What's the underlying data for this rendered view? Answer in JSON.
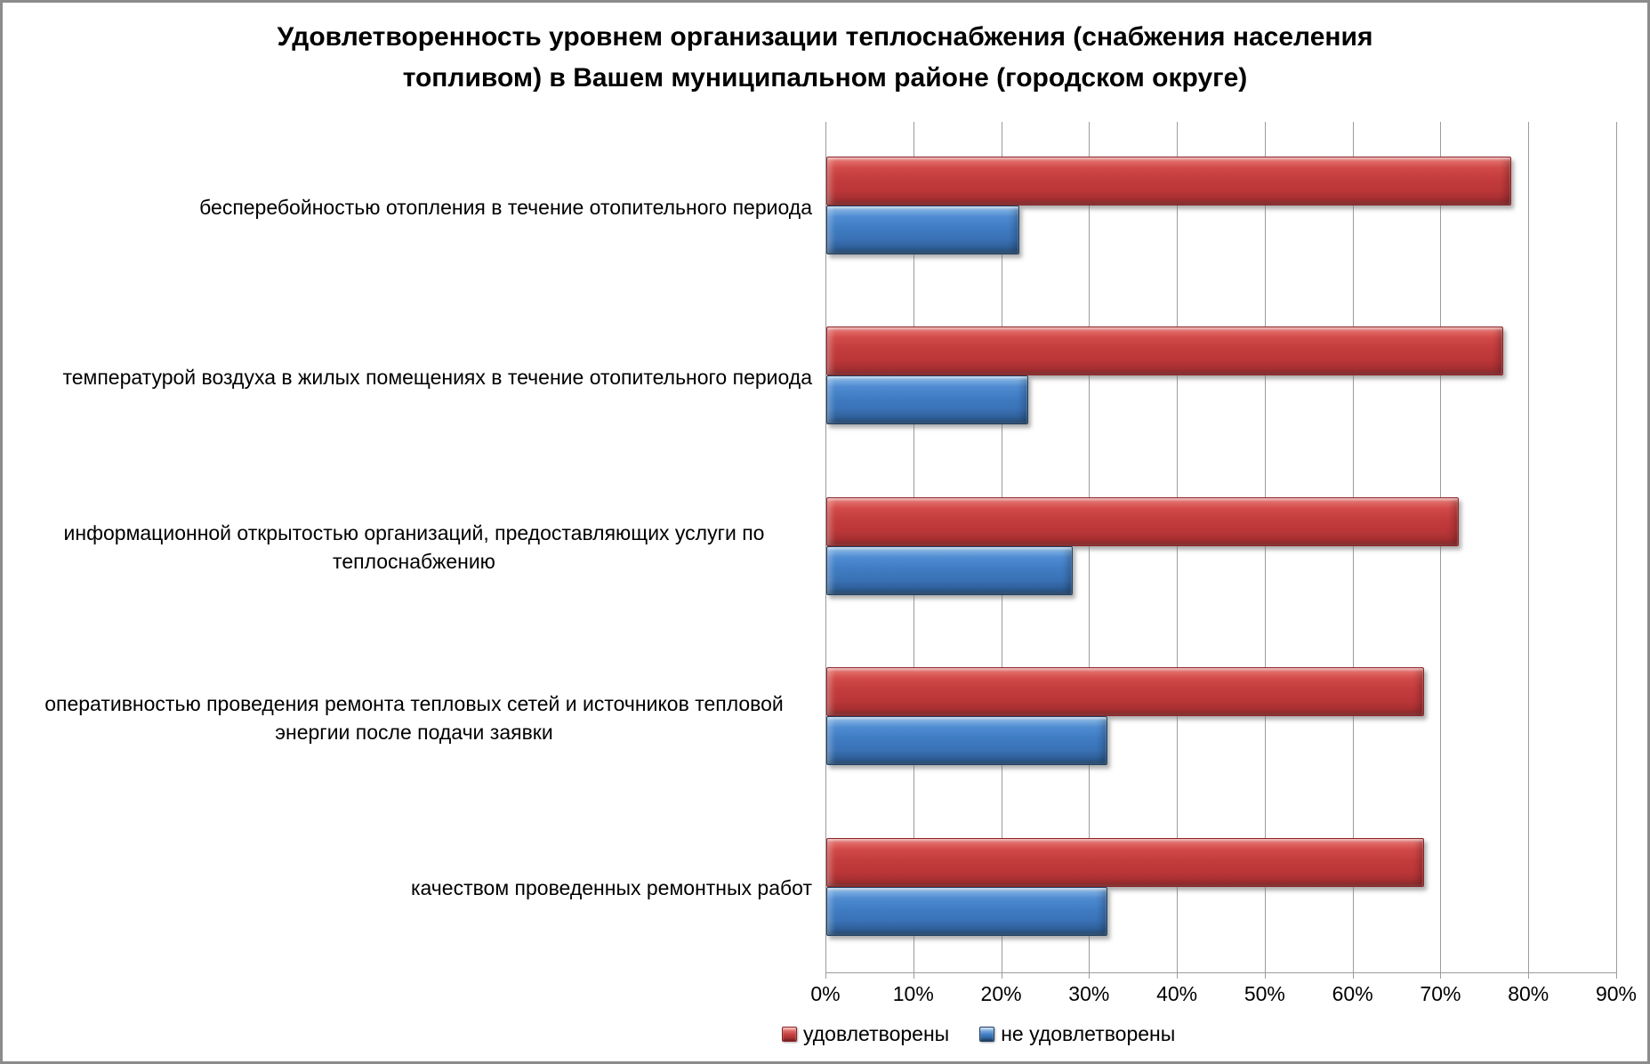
{
  "title": "Удовлетворенность уровнем организации теплоснабжения (снабжения населения топливом) в Вашем муниципальном районе (городском округе)",
  "chart_data": {
    "type": "bar",
    "orientation": "horizontal",
    "title": "Удовлетворенность уровнем организации теплоснабжения (снабжения населения топливом) в Вашем муниципальном районе (городском округе)",
    "categories": [
      "бесперебойностью отопления в течение отопительного периода",
      "температурой воздуха в жилых помещениях в течение отопительного периода",
      "информационной открытостью организаций, предоставляющих услуги по теплоснабжению",
      "оперативностью проведения ремонта тепловых сетей и источников тепловой энергии после подачи заявки",
      "качеством проведенных ремонтных работ"
    ],
    "series": [
      {
        "name": "удовлетворены",
        "color": "#C43C3D",
        "values": [
          78,
          77,
          72,
          68,
          68
        ]
      },
      {
        "name": "не удовлетворены",
        "color": "#3F7CC3",
        "values": [
          22,
          23,
          28,
          32,
          32
        ]
      }
    ],
    "x_axis": {
      "min": 0,
      "max": 90,
      "unit": "%",
      "tick_labels": [
        "0%",
        "10%",
        "20%",
        "30%",
        "40%",
        "50%",
        "60%",
        "70%",
        "80%",
        "90%"
      ]
    },
    "grid": true,
    "legend_position": "bottom",
    "gridline_color": "#9c9c9c"
  }
}
